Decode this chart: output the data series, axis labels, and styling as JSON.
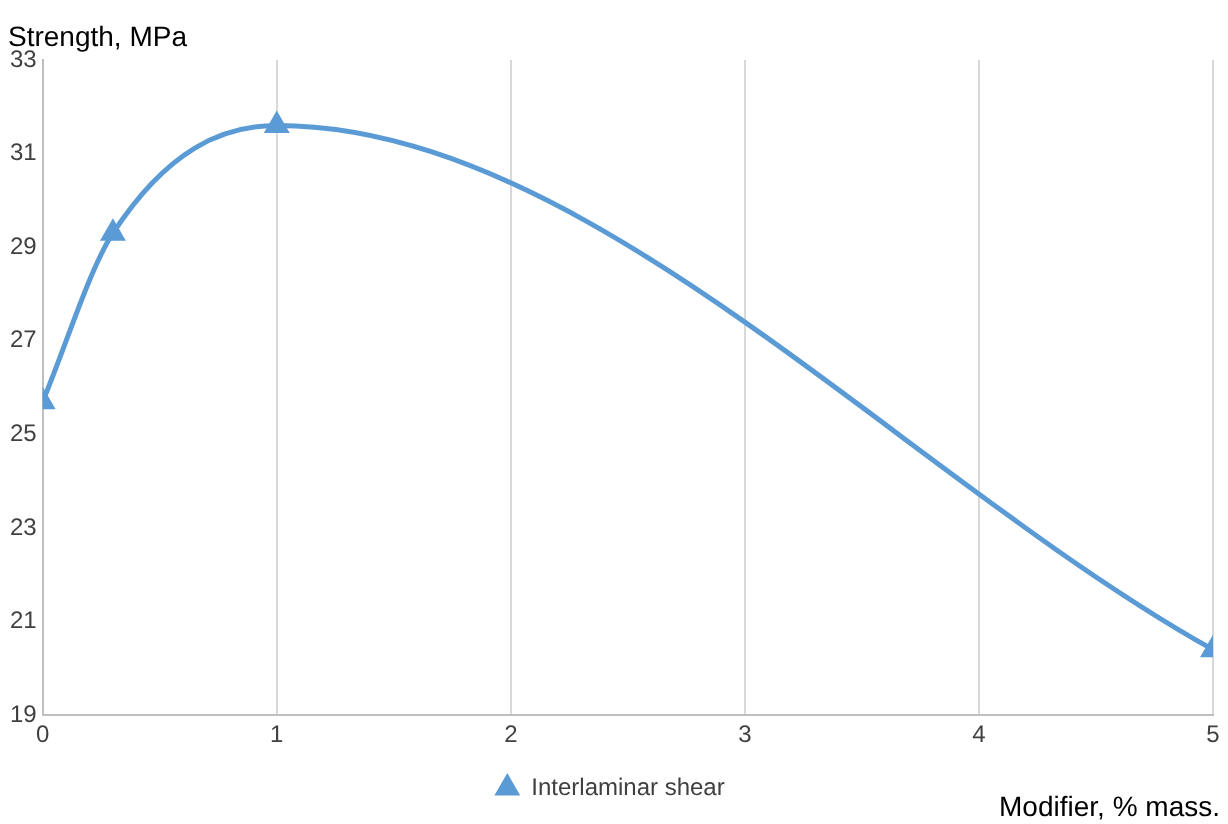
{
  "chart_data": {
    "type": "line",
    "ylabel": "Strength, MPa",
    "xlabel": "Modifier, % mass.",
    "x": [
      0,
      0.3,
      1,
      5
    ],
    "series": [
      {
        "name": "Interlaminar shear",
        "color": "#5b9bd5",
        "values": [
          25.7,
          29.3,
          31.6,
          20.4
        ]
      }
    ],
    "xlim": [
      0,
      5
    ],
    "xticks": [
      0,
      1,
      2,
      3,
      4,
      5
    ],
    "ylim": [
      19,
      33
    ],
    "yticks": [
      19,
      21,
      23,
      25,
      27,
      29,
      31,
      33
    ],
    "grid": "x",
    "legend": "bottom",
    "marker": "triangle",
    "line_style": "solid"
  }
}
